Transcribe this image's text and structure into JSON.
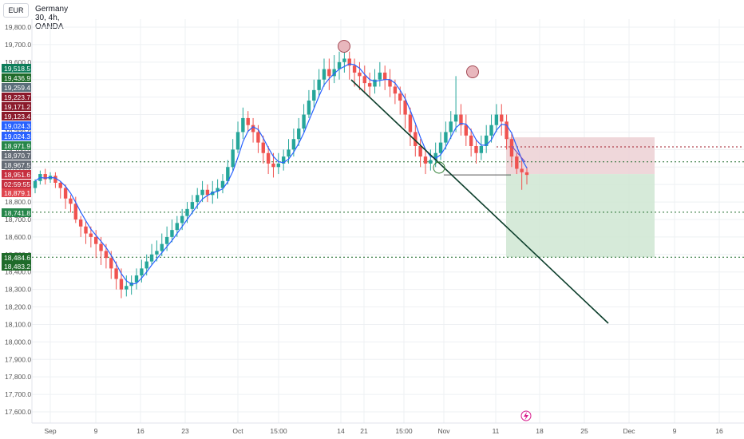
{
  "header": {
    "currency": "EUR",
    "title": "Germany 30, 4h, OANDA"
  },
  "colors": {
    "up": "#26a69a",
    "down": "#ef5350",
    "ma": "#2962ff",
    "trend": "#0b3d2a",
    "grid": "#eef0f3",
    "green_zone": "#cfe6d2",
    "red_zone": "#ecd0d4"
  },
  "chart_data": {
    "type": "candlestick",
    "ylim": [
      17550,
      19850
    ],
    "y_ticks": [
      "19,800.0",
      "19,700.0",
      "19,600.0",
      "19,500.0",
      "19,400.0",
      "19,300.0",
      "19,200.0",
      "19,100.0",
      "19,000.0",
      "18,900.0",
      "18,800.0",
      "18,700.0",
      "18,600.0",
      "18,500.0",
      "18,400.0",
      "18,300.0",
      "18,200.0",
      "18,100.0",
      "18,000.0",
      "17,900.0",
      "17,800.0",
      "17,700.0",
      "17,600.0"
    ],
    "x_ticks": [
      "Sep",
      "9",
      "16",
      "23",
      "Oct",
      "15:00",
      "14",
      "21",
      "15:00",
      "Nov",
      "11",
      "18",
      "25",
      "Dec",
      "9",
      "16"
    ],
    "price_labels": [
      {
        "text": "19,518.5",
        "color": "#0f7d5a"
      },
      {
        "text": "19,436.9",
        "color": "#1f6b2a"
      },
      {
        "text": "19,259.4",
        "color": "#5a6e79"
      },
      {
        "text": "19,223.7",
        "color": "#8b1a2b"
      },
      {
        "text": "19,171.2",
        "color": "#8b1a2b"
      },
      {
        "text": "19,123.4",
        "color": "#8b1a2b"
      },
      {
        "text": "19,024.3",
        "color": "#2962ff"
      },
      {
        "text": "19,024.3",
        "color": "#2962ff"
      },
      {
        "text": "18,971.9",
        "color": "#26864a"
      },
      {
        "text": "18,970.7",
        "color": "#666d77"
      },
      {
        "text": "18,967.5",
        "color": "#666d77"
      },
      {
        "text": "18,951.6",
        "color": "#c62f3f"
      },
      {
        "text": "02:59:55",
        "color": "#c62f3f"
      },
      {
        "text": "18,879.1",
        "color": "#e0464f"
      },
      {
        "text": "18,741.8",
        "color": "#26864a"
      },
      {
        "text": "18,484.6",
        "color": "#1f6b2a"
      },
      {
        "text": "18,483.2",
        "color": "#1f6b2a"
      }
    ],
    "levels": {
      "resistance": 19030,
      "current": 18951.6,
      "mid_support": 18741.8,
      "low_support": 18484.6,
      "neckline": 18955
    },
    "position": {
      "entry": 18960,
      "stop": 19170,
      "target": 18484.6
    },
    "candles": [
      [
        18880,
        18920,
        18850,
        18930
      ],
      [
        18920,
        18960,
        18900,
        18980
      ],
      [
        18960,
        18930,
        18900,
        18990
      ],
      [
        18930,
        18950,
        18910,
        18970
      ],
      [
        18950,
        18910,
        18880,
        18970
      ],
      [
        18910,
        18880,
        18820,
        18920
      ],
      [
        18880,
        18820,
        18760,
        18900
      ],
      [
        18820,
        18790,
        18740,
        18840
      ],
      [
        18790,
        18700,
        18680,
        18830
      ],
      [
        18700,
        18660,
        18600,
        18720
      ],
      [
        18660,
        18620,
        18560,
        18690
      ],
      [
        18620,
        18600,
        18540,
        18660
      ],
      [
        18600,
        18560,
        18480,
        18640
      ],
      [
        18560,
        18520,
        18440,
        18600
      ],
      [
        18520,
        18480,
        18420,
        18560
      ],
      [
        18480,
        18420,
        18360,
        18520
      ],
      [
        18420,
        18360,
        18300,
        18460
      ],
      [
        18360,
        18300,
        18250,
        18420
      ],
      [
        18300,
        18320,
        18260,
        18380
      ],
      [
        18320,
        18340,
        18270,
        18380
      ],
      [
        18340,
        18380,
        18300,
        18420
      ],
      [
        18380,
        18420,
        18340,
        18470
      ],
      [
        18420,
        18460,
        18380,
        18500
      ],
      [
        18460,
        18500,
        18440,
        18560
      ],
      [
        18500,
        18520,
        18460,
        18580
      ],
      [
        18520,
        18560,
        18490,
        18620
      ],
      [
        18560,
        18600,
        18520,
        18660
      ],
      [
        18600,
        18640,
        18570,
        18700
      ],
      [
        18640,
        18680,
        18600,
        18720
      ],
      [
        18680,
        18720,
        18640,
        18760
      ],
      [
        18720,
        18760,
        18680,
        18800
      ],
      [
        18760,
        18800,
        18730,
        18840
      ],
      [
        18800,
        18840,
        18760,
        18880
      ],
      [
        18840,
        18870,
        18800,
        18920
      ],
      [
        18870,
        18840,
        18800,
        18900
      ],
      [
        18840,
        18860,
        18790,
        18920
      ],
      [
        18860,
        18880,
        18820,
        18930
      ],
      [
        18880,
        18920,
        18850,
        18960
      ],
      [
        18920,
        19000,
        18900,
        19040
      ],
      [
        19000,
        19100,
        18980,
        19160
      ],
      [
        19100,
        19200,
        19080,
        19260
      ],
      [
        19200,
        19280,
        19160,
        19340
      ],
      [
        19280,
        19240,
        19200,
        19320
      ],
      [
        19240,
        19200,
        19140,
        19280
      ],
      [
        19200,
        19140,
        19080,
        19240
      ],
      [
        19140,
        19080,
        19020,
        19180
      ],
      [
        19080,
        19020,
        18960,
        19120
      ],
      [
        19020,
        19000,
        18940,
        19080
      ],
      [
        19000,
        19020,
        18960,
        19080
      ],
      [
        19020,
        19060,
        18980,
        19100
      ],
      [
        19060,
        19100,
        19020,
        19160
      ],
      [
        19100,
        19160,
        19060,
        19220
      ],
      [
        19160,
        19220,
        19120,
        19280
      ],
      [
        19220,
        19300,
        19200,
        19360
      ],
      [
        19300,
        19380,
        19280,
        19440
      ],
      [
        19380,
        19440,
        19340,
        19500
      ],
      [
        19440,
        19500,
        19400,
        19560
      ],
      [
        19500,
        19560,
        19460,
        19620
      ],
      [
        19560,
        19520,
        19440,
        19620
      ],
      [
        19520,
        19560,
        19480,
        19640
      ],
      [
        19560,
        19600,
        19500,
        19660
      ],
      [
        19600,
        19620,
        19540,
        19680
      ],
      [
        19620,
        19580,
        19500,
        19660
      ],
      [
        19580,
        19540,
        19460,
        19620
      ],
      [
        19540,
        19520,
        19440,
        19600
      ],
      [
        19520,
        19480,
        19420,
        19580
      ],
      [
        19480,
        19460,
        19400,
        19540
      ],
      [
        19460,
        19500,
        19420,
        19560
      ],
      [
        19500,
        19540,
        19460,
        19600
      ],
      [
        19540,
        19500,
        19440,
        19580
      ],
      [
        19500,
        19460,
        19400,
        19560
      ],
      [
        19460,
        19420,
        19360,
        19500
      ],
      [
        19420,
        19380,
        19300,
        19460
      ],
      [
        19380,
        19300,
        19220,
        19420
      ],
      [
        19300,
        19200,
        19120,
        19340
      ],
      [
        19200,
        19120,
        19060,
        19240
      ],
      [
        19120,
        19060,
        19000,
        19160
      ],
      [
        19060,
        19020,
        18960,
        19100
      ],
      [
        19020,
        19040,
        18980,
        19100
      ],
      [
        19040,
        19080,
        19000,
        19140
      ],
      [
        19080,
        19140,
        19040,
        19200
      ],
      [
        19140,
        19200,
        19100,
        19260
      ],
      [
        19200,
        19260,
        19160,
        19320
      ],
      [
        19260,
        19300,
        19200,
        19520
      ],
      [
        19300,
        19240,
        19180,
        19360
      ],
      [
        19240,
        19180,
        19120,
        19300
      ],
      [
        19180,
        19120,
        19060,
        19220
      ],
      [
        19120,
        19080,
        19020,
        19160
      ],
      [
        19080,
        19120,
        19040,
        19180
      ],
      [
        19120,
        19180,
        19080,
        19240
      ],
      [
        19180,
        19240,
        19140,
        19300
      ],
      [
        19240,
        19300,
        19200,
        19360
      ],
      [
        19300,
        19260,
        19180,
        19360
      ],
      [
        19260,
        19160,
        19100,
        19300
      ],
      [
        19160,
        19060,
        19000,
        19200
      ],
      [
        19060,
        18990,
        18960,
        19080
      ],
      [
        18990,
        18970,
        18870,
        19040
      ],
      [
        18970,
        18955,
        18900,
        19000
      ]
    ]
  }
}
